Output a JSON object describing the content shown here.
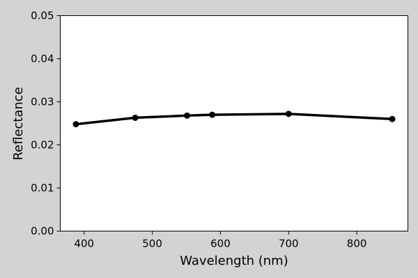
{
  "chart_data": {
    "type": "line",
    "title": "",
    "xlabel": "Wavelength (nm)",
    "ylabel": "Reflectance",
    "xlim": [
      365,
      875
    ],
    "ylim": [
      0,
      0.05
    ],
    "xticks": [
      400,
      500,
      600,
      700,
      800
    ],
    "xtick_labels": [
      "400",
      "500",
      "600",
      "700",
      "800"
    ],
    "yticks": [
      0,
      0.01,
      0.02,
      0.03,
      0.04,
      0.05
    ],
    "ytick_labels": [
      "0.00",
      "0.01",
      "0.02",
      "0.03",
      "0.04",
      "0.05"
    ],
    "grid": false,
    "series": [
      {
        "x": [
          388,
          475,
          551,
          588,
          700,
          852
        ],
        "y": [
          0.0248,
          0.0263,
          0.0268,
          0.027,
          0.0272,
          0.026
        ],
        "color": "#000000",
        "marker": "circle"
      }
    ]
  },
  "colors": {
    "background": "#d3d3d3",
    "plot_area": "#ffffff",
    "line": "#000000"
  }
}
